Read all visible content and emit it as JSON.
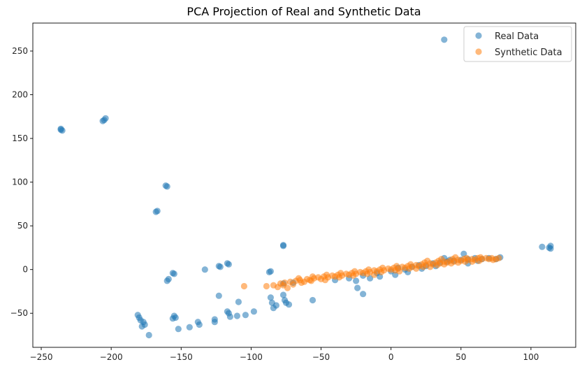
{
  "chart_data": {
    "type": "scatter",
    "title": "PCA Projection of Real and Synthetic Data",
    "xlabel": "",
    "ylabel": "",
    "xlim": [
      -256,
      132
    ],
    "ylim": [
      -89,
      282
    ],
    "x_ticks": [
      -250,
      -200,
      -150,
      -100,
      -50,
      0,
      50,
      100
    ],
    "y_ticks": [
      -50,
      0,
      50,
      100,
      150,
      200,
      250
    ],
    "grid": false,
    "legend_position": "top-right",
    "series": [
      {
        "name": "Real Data",
        "color": "#1f77b4",
        "opacity": 0.55,
        "points": [
          [
            -236,
            160
          ],
          [
            -236,
            161
          ],
          [
            -235,
            159
          ],
          [
            -205,
            171
          ],
          [
            -206,
            170
          ],
          [
            -204,
            173
          ],
          [
            -161,
            96
          ],
          [
            -160,
            95
          ],
          [
            -167,
            67
          ],
          [
            -168,
            66
          ],
          [
            -159,
            -11
          ],
          [
            -160,
            -13
          ],
          [
            -156,
            -4
          ],
          [
            -155,
            -5
          ],
          [
            -155,
            -53
          ],
          [
            -156,
            -56
          ],
          [
            -154,
            -55
          ],
          [
            -181,
            -52
          ],
          [
            -180,
            -55
          ],
          [
            -179,
            -58
          ],
          [
            -177,
            -60
          ],
          [
            -176,
            -63
          ],
          [
            -178,
            -65
          ],
          [
            -173,
            -75
          ],
          [
            -152,
            -68
          ],
          [
            -144,
            -66
          ],
          [
            -137,
            -63
          ],
          [
            -138,
            -60
          ],
          [
            -133,
            0
          ],
          [
            -122,
            3
          ],
          [
            -123,
            4
          ],
          [
            -116,
            6
          ],
          [
            -117,
            7
          ],
          [
            -123,
            -30
          ],
          [
            -117,
            -48
          ],
          [
            -116,
            -50
          ],
          [
            -115,
            -54
          ],
          [
            -110,
            -53
          ],
          [
            -104,
            -52
          ],
          [
            -98,
            -48
          ],
          [
            -109,
            -37
          ],
          [
            -126,
            -57
          ],
          [
            -126,
            -60
          ],
          [
            -87,
            -3
          ],
          [
            -86,
            -2
          ],
          [
            -86,
            -32
          ],
          [
            -85,
            -38
          ],
          [
            -84,
            -44
          ],
          [
            -82,
            -41
          ],
          [
            -77,
            27
          ],
          [
            -77,
            28
          ],
          [
            -77,
            -29
          ],
          [
            -76,
            -35
          ],
          [
            -75,
            -38
          ],
          [
            -73,
            -40
          ],
          [
            -77,
            -16
          ],
          [
            -70,
            -15
          ],
          [
            -56,
            -35
          ],
          [
            -40,
            -12
          ],
          [
            -30,
            -10
          ],
          [
            -24,
            -21
          ],
          [
            -20,
            -7
          ],
          [
            -10,
            -4
          ],
          [
            0,
            -2
          ],
          [
            5,
            2
          ],
          [
            10,
            0
          ],
          [
            15,
            3
          ],
          [
            20,
            5
          ],
          [
            25,
            4
          ],
          [
            30,
            7
          ],
          [
            35,
            8
          ],
          [
            40,
            9
          ],
          [
            45,
            10
          ],
          [
            50,
            11
          ],
          [
            55,
            12
          ],
          [
            60,
            13
          ],
          [
            65,
            12
          ],
          [
            70,
            13
          ],
          [
            75,
            12
          ],
          [
            78,
            14
          ],
          [
            38,
            13
          ],
          [
            42,
            11
          ],
          [
            52,
            18
          ],
          [
            55,
            7
          ],
          [
            62,
            10
          ],
          [
            -8,
            -8
          ],
          [
            3,
            -6
          ],
          [
            12,
            -3
          ],
          [
            22,
            1
          ],
          [
            32,
            4
          ],
          [
            -15,
            -10
          ],
          [
            -25,
            -13
          ],
          [
            -20,
            -28
          ],
          [
            38,
            263
          ],
          [
            108,
            26
          ],
          [
            113,
            25
          ],
          [
            114,
            27
          ],
          [
            114,
            24
          ]
        ]
      },
      {
        "name": "Synthetic Data",
        "color": "#ff7f0e",
        "opacity": 0.55,
        "points": [
          [
            -105,
            -19
          ],
          [
            -89,
            -19
          ],
          [
            -84,
            -18
          ],
          [
            -81,
            -20
          ],
          [
            -79,
            -16
          ],
          [
            -77,
            -18
          ],
          [
            -76,
            -15
          ],
          [
            -74,
            -21
          ],
          [
            -72,
            -14
          ],
          [
            -68,
            -13
          ],
          [
            -65,
            -12
          ],
          [
            -62,
            -14
          ],
          [
            -60,
            -11
          ],
          [
            -58,
            -12
          ],
          [
            -55,
            -10
          ],
          [
            -52,
            -9
          ],
          [
            -50,
            -11
          ],
          [
            -48,
            -8
          ],
          [
            -45,
            -9
          ],
          [
            -42,
            -7
          ],
          [
            -40,
            -8
          ],
          [
            -38,
            -6
          ],
          [
            -35,
            -7
          ],
          [
            -32,
            -5
          ],
          [
            -30,
            -6
          ],
          [
            -28,
            -4
          ],
          [
            -25,
            -5
          ],
          [
            -22,
            -3
          ],
          [
            -20,
            -4
          ],
          [
            -18,
            -2
          ],
          [
            -15,
            -3
          ],
          [
            -12,
            -1
          ],
          [
            -10,
            -2
          ],
          [
            -8,
            0
          ],
          [
            -5,
            -1
          ],
          [
            -2,
            1
          ],
          [
            0,
            0
          ],
          [
            2,
            2
          ],
          [
            5,
            1
          ],
          [
            8,
            3
          ],
          [
            10,
            2
          ],
          [
            12,
            4
          ],
          [
            15,
            3
          ],
          [
            18,
            5
          ],
          [
            20,
            4
          ],
          [
            22,
            6
          ],
          [
            25,
            5
          ],
          [
            28,
            7
          ],
          [
            30,
            6
          ],
          [
            32,
            8
          ],
          [
            35,
            7
          ],
          [
            38,
            9
          ],
          [
            40,
            8
          ],
          [
            42,
            10
          ],
          [
            45,
            9
          ],
          [
            48,
            11
          ],
          [
            50,
            10
          ],
          [
            52,
            12
          ],
          [
            55,
            11
          ],
          [
            58,
            12
          ],
          [
            60,
            11
          ],
          [
            62,
            13
          ],
          [
            65,
            12
          ],
          [
            68,
            13
          ],
          [
            70,
            12
          ],
          [
            72,
            13
          ],
          [
            75,
            12
          ],
          [
            77,
            13
          ],
          [
            -70,
            -17
          ],
          [
            -64,
            -15
          ],
          [
            -57,
            -13
          ],
          [
            -47,
            -12
          ],
          [
            -37,
            -9
          ],
          [
            -27,
            -7
          ],
          [
            -17,
            -5
          ],
          [
            -7,
            -3
          ],
          [
            3,
            -1
          ],
          [
            13,
            1
          ],
          [
            23,
            3
          ],
          [
            33,
            5
          ],
          [
            43,
            7
          ],
          [
            53,
            9
          ],
          [
            63,
            10
          ],
          [
            73,
            11
          ],
          [
            -66,
            -10
          ],
          [
            -56,
            -8
          ],
          [
            -46,
            -6
          ],
          [
            -36,
            -4
          ],
          [
            -26,
            -2
          ],
          [
            -16,
            0
          ],
          [
            -6,
            2
          ],
          [
            4,
            4
          ],
          [
            14,
            6
          ],
          [
            24,
            8
          ],
          [
            34,
            10
          ],
          [
            44,
            12
          ],
          [
            54,
            13
          ],
          [
            64,
            14
          ],
          [
            -12,
            -6
          ],
          [
            6,
            -2
          ],
          [
            18,
            1
          ],
          [
            28,
            3
          ],
          [
            38,
            6
          ],
          [
            48,
            8
          ],
          [
            58,
            9
          ],
          [
            26,
            10
          ],
          [
            36,
            12
          ],
          [
            46,
            14
          ]
        ]
      }
    ]
  }
}
